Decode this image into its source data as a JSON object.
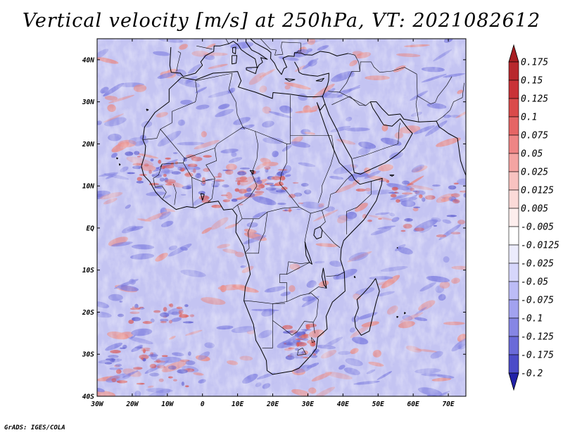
{
  "title": "Vertical velocity [m/s] at 250hPa, VT: 2021082612",
  "footer": "GrADS: IGES/COLA",
  "map": {
    "lon_range": [
      -30,
      75
    ],
    "lat_range": [
      -40,
      45
    ],
    "lon_ticks": [
      {
        "value": -30,
        "label": "30W"
      },
      {
        "value": -20,
        "label": "20W"
      },
      {
        "value": -10,
        "label": "10W"
      },
      {
        "value": 0,
        "label": "0"
      },
      {
        "value": 10,
        "label": "10E"
      },
      {
        "value": 20,
        "label": "20E"
      },
      {
        "value": 30,
        "label": "30E"
      },
      {
        "value": 40,
        "label": "40E"
      },
      {
        "value": 50,
        "label": "50E"
      },
      {
        "value": 60,
        "label": "60E"
      },
      {
        "value": 70,
        "label": "70E"
      }
    ],
    "lat_ticks": [
      {
        "value": 40,
        "label": "40N"
      },
      {
        "value": 30,
        "label": "30N"
      },
      {
        "value": 20,
        "label": "20N"
      },
      {
        "value": 10,
        "label": "10N"
      },
      {
        "value": 0,
        "label": "EQ"
      },
      {
        "value": -10,
        "label": "10S"
      },
      {
        "value": -20,
        "label": "20S"
      },
      {
        "value": -30,
        "label": "30S"
      },
      {
        "value": -40,
        "label": "40S"
      }
    ]
  },
  "colorbar": {
    "levels": [
      {
        "label": "0.175",
        "color": "#b8282d"
      },
      {
        "label": "0.15",
        "color": "#c93237"
      },
      {
        "label": "0.125",
        "color": "#da4a4a"
      },
      {
        "label": "0.1",
        "color": "#e56565"
      },
      {
        "label": "0.075",
        "color": "#ee8585"
      },
      {
        "label": "0.05",
        "color": "#f4a4a2"
      },
      {
        "label": "0.025",
        "color": "#f8c2c0"
      },
      {
        "label": "0.0125",
        "color": "#fbdad8"
      },
      {
        "label": "0.005",
        "color": "#fdeeed"
      },
      {
        "label": "-0.005",
        "color": "#ffffff"
      },
      {
        "label": "-0.0125",
        "color": "#ececfd"
      },
      {
        "label": "-0.025",
        "color": "#d6d6fb"
      },
      {
        "label": "-0.05",
        "color": "#bcbcf6"
      },
      {
        "label": "-0.075",
        "color": "#a2a2ef"
      },
      {
        "label": "-0.1",
        "color": "#8686e4"
      },
      {
        "label": "-0.125",
        "color": "#6a6ad8"
      },
      {
        "label": "-0.175",
        "color": "#4c4cc8"
      },
      {
        "label": "-0.2",
        "color": "#3030b4"
      }
    ],
    "top_triangle_color": "#a81e22",
    "bottom_triangle_color": "#2222a8"
  },
  "colors": {
    "base": "#c4c4f2",
    "updraft": "#e98a85",
    "downdraft": "#7a7ade",
    "coast": "#000000"
  }
}
